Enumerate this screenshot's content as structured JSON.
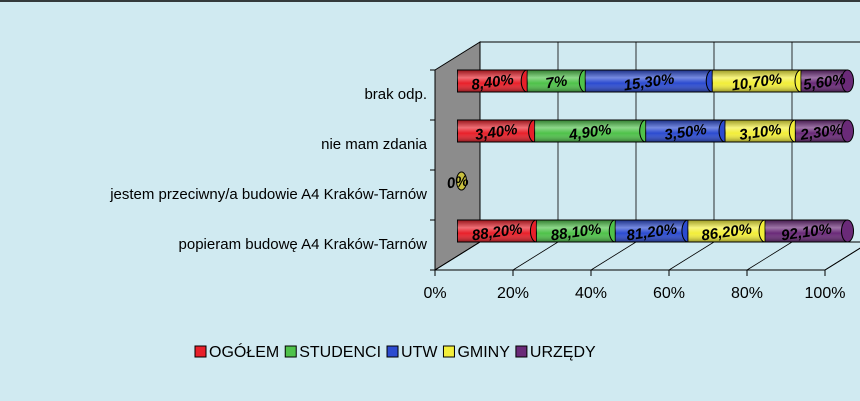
{
  "chart_data": {
    "type": "bar",
    "orientation": "horizontal",
    "stacking": "percent",
    "categories": [
      "brak odp.",
      "nie mam zdania",
      "jestem przeciwny/a budowie A4 Kraków-Tarnów",
      "popieram budowę A4 Kraków-Tarnów"
    ],
    "series": [
      {
        "name": "OGÓŁEM",
        "color": "#e8202a",
        "values": [
          8.4,
          3.4,
          0,
          88.2
        ],
        "value_labels": [
          "8,40%",
          "3,40%",
          "0%",
          "88,20%"
        ]
      },
      {
        "name": "STUDENCI",
        "color": "#4fc24a",
        "values": [
          7,
          4.9,
          0,
          88.1
        ],
        "value_labels": [
          "7%",
          "4,90%",
          null,
          "88,10%"
        ]
      },
      {
        "name": "UTW",
        "color": "#2c4bd0",
        "values": [
          15.3,
          3.5,
          0,
          81.2
        ],
        "value_labels": [
          "15,30%",
          "3,50%",
          null,
          "81,20%"
        ]
      },
      {
        "name": "GMINY",
        "color": "#f2ee3a",
        "values": [
          10.7,
          3.1,
          0,
          86.2
        ],
        "value_labels": [
          "10,70%",
          "3,10%",
          null,
          "86,20%"
        ]
      },
      {
        "name": "URZĘDY",
        "color": "#6a2a78",
        "values": [
          5.6,
          2.3,
          0,
          92.1
        ],
        "value_labels": [
          "5,60%",
          "2,30%",
          null,
          "92,10%"
        ]
      }
    ],
    "xlim": [
      0,
      100
    ],
    "xticks": [
      {
        "value": 0,
        "label": "0%"
      },
      {
        "value": 20,
        "label": "20%"
      },
      {
        "value": 40,
        "label": "40%"
      },
      {
        "value": 60,
        "label": "60%"
      },
      {
        "value": 80,
        "label": "80%"
      },
      {
        "value": 100,
        "label": "100%"
      }
    ],
    "grid": true,
    "legend": "bottom"
  }
}
